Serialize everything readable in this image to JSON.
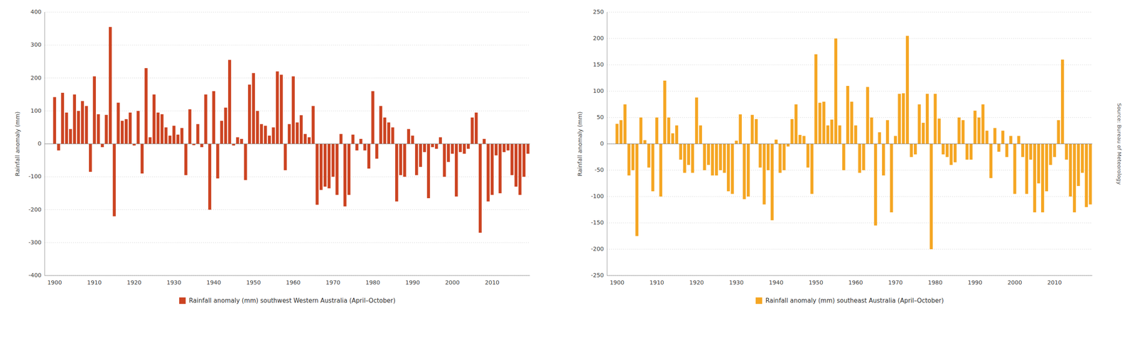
{
  "chart_data": [
    {
      "type": "bar",
      "x": [
        1900,
        1901,
        1902,
        1903,
        1904,
        1905,
        1906,
        1907,
        1908,
        1909,
        1910,
        1911,
        1912,
        1913,
        1914,
        1915,
        1916,
        1917,
        1918,
        1919,
        1920,
        1921,
        1922,
        1923,
        1924,
        1925,
        1926,
        1927,
        1928,
        1929,
        1930,
        1931,
        1932,
        1933,
        1934,
        1935,
        1936,
        1937,
        1938,
        1939,
        1940,
        1941,
        1942,
        1943,
        1944,
        1945,
        1946,
        1947,
        1948,
        1949,
        1950,
        1951,
        1952,
        1953,
        1954,
        1955,
        1956,
        1957,
        1958,
        1959,
        1960,
        1961,
        1962,
        1963,
        1964,
        1965,
        1966,
        1967,
        1968,
        1969,
        1970,
        1971,
        1972,
        1973,
        1974,
        1975,
        1976,
        1977,
        1978,
        1979,
        1980,
        1981,
        1982,
        1983,
        1984,
        1985,
        1986,
        1987,
        1988,
        1989,
        1990,
        1991,
        1992,
        1993,
        1994,
        1995,
        1996,
        1997,
        1998,
        1999,
        2000,
        2001,
        2002,
        2003,
        2004,
        2005,
        2006,
        2007,
        2008,
        2009,
        2010,
        2011,
        2012,
        2013,
        2014,
        2015,
        2016,
        2017,
        2018,
        2019
      ],
      "series": [
        {
          "name": "Rainfall anomaly (mm) southwest Western Australia (April–October)",
          "color": "#CC4422",
          "values": [
            142,
            -20,
            155,
            95,
            45,
            150,
            100,
            130,
            115,
            -85,
            205,
            90,
            -10,
            88,
            355,
            -220,
            125,
            70,
            75,
            95,
            -5,
            100,
            -90,
            230,
            20,
            150,
            95,
            90,
            50,
            25,
            55,
            28,
            48,
            -95,
            105,
            -4,
            60,
            -10,
            150,
            -200,
            160,
            -105,
            70,
            110,
            255,
            -5,
            20,
            15,
            -110,
            180,
            215,
            100,
            60,
            55,
            25,
            50,
            220,
            210,
            -80,
            60,
            205,
            65,
            87,
            30,
            20,
            115,
            -185,
            -140,
            -130,
            -135,
            -100,
            -155,
            30,
            -190,
            -155,
            28,
            -20,
            15,
            -20,
            -75,
            160,
            -45,
            115,
            80,
            65,
            50,
            -175,
            -95,
            -100,
            45,
            25,
            -95,
            -70,
            -25,
            -165,
            -10,
            -15,
            20,
            -100,
            -55,
            -30,
            -160,
            -25,
            -30,
            -15,
            80,
            95,
            -270,
            15,
            -175,
            -155,
            -35,
            -150,
            -25,
            -20,
            -95,
            -130,
            -155,
            -100,
            -30
          ]
        }
      ],
      "y_label": "Rainfall anomaly (mm)",
      "xlim": [
        1897.5,
        2019.5
      ],
      "xticks": [
        1900,
        1910,
        1920,
        1930,
        1940,
        1950,
        1960,
        1970,
        1980,
        1990,
        2000,
        2010
      ],
      "ylim": [
        -400,
        400
      ],
      "yticks": [
        -400,
        -300,
        -200,
        -100,
        0,
        100,
        200,
        300,
        400
      ],
      "grid": true,
      "legend": "bottom"
    },
    {
      "type": "bar",
      "x": [
        1900,
        1901,
        1902,
        1903,
        1904,
        1905,
        1906,
        1907,
        1908,
        1909,
        1910,
        1911,
        1912,
        1913,
        1914,
        1915,
        1916,
        1917,
        1918,
        1919,
        1920,
        1921,
        1922,
        1923,
        1924,
        1925,
        1926,
        1927,
        1928,
        1929,
        1930,
        1931,
        1932,
        1933,
        1934,
        1935,
        1936,
        1937,
        1938,
        1939,
        1940,
        1941,
        1942,
        1943,
        1944,
        1945,
        1946,
        1947,
        1948,
        1949,
        1950,
        1951,
        1952,
        1953,
        1954,
        1955,
        1956,
        1957,
        1958,
        1959,
        1960,
        1961,
        1962,
        1963,
        1964,
        1965,
        1966,
        1967,
        1968,
        1969,
        1970,
        1971,
        1972,
        1973,
        1974,
        1975,
        1976,
        1977,
        1978,
        1979,
        1980,
        1981,
        1982,
        1983,
        1984,
        1985,
        1986,
        1987,
        1988,
        1989,
        1990,
        1991,
        1992,
        1993,
        1994,
        1995,
        1996,
        1997,
        1998,
        1999,
        2000,
        2001,
        2002,
        2003,
        2004,
        2005,
        2006,
        2007,
        2008,
        2009,
        2010,
        2011,
        2012,
        2013,
        2014,
        2015,
        2016,
        2017,
        2018,
        2019
      ],
      "series": [
        {
          "name": "Rainfall anomaly (mm) southeast Australia (April–October)",
          "color": "#F5A623",
          "values": [
            38,
            45,
            75,
            -60,
            -50,
            -175,
            50,
            7,
            -45,
            -90,
            50,
            -100,
            120,
            50,
            20,
            35,
            -30,
            -55,
            -40,
            -55,
            88,
            35,
            -50,
            -40,
            -60,
            -60,
            -50,
            -55,
            -90,
            -95,
            6,
            56,
            -105,
            -100,
            55,
            47,
            -45,
            -115,
            -50,
            -145,
            8,
            -55,
            -50,
            -5,
            47,
            75,
            17,
            15,
            -45,
            -95,
            170,
            78,
            80,
            35,
            46,
            200,
            35,
            -50,
            110,
            80,
            35,
            -55,
            -50,
            108,
            50,
            -155,
            22,
            -60,
            45,
            -130,
            15,
            95,
            96,
            205,
            -25,
            -20,
            75,
            40,
            95,
            -200,
            95,
            48,
            -20,
            -25,
            -40,
            -35,
            50,
            45,
            -30,
            -30,
            63,
            50,
            75,
            25,
            -65,
            30,
            -15,
            25,
            -25,
            15,
            -95,
            15,
            -25,
            -95,
            -30,
            -130,
            -75,
            -130,
            -90,
            -40,
            -25,
            45,
            160,
            -30,
            -100,
            -130,
            -80,
            -55,
            -120,
            -115
          ]
        }
      ],
      "y_label": "Rainfall anomaly (mm)",
      "xlim": [
        1897.5,
        2019.5
      ],
      "xticks": [
        1900,
        1910,
        1920,
        1930,
        1940,
        1950,
        1960,
        1970,
        1980,
        1990,
        2000,
        2010
      ],
      "ylim": [
        -250,
        250
      ],
      "yticks": [
        -250,
        -200,
        -150,
        -100,
        -50,
        0,
        50,
        100,
        150,
        200,
        250
      ],
      "grid": true,
      "legend": "bottom",
      "annotations": [
        "Source: Bureau of Meteorology"
      ]
    }
  ]
}
